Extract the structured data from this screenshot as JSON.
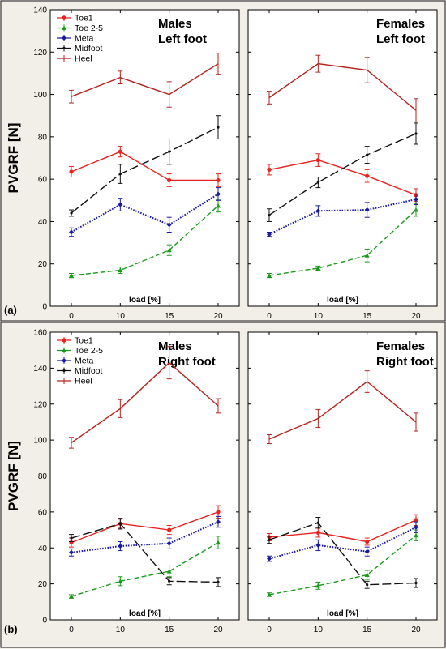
{
  "chart_data": [
    {
      "type": "line",
      "panel_label": "(a)",
      "ylabel": "PVGRF [N]",
      "ylim": [
        0,
        140
      ],
      "yticks": [
        0,
        20,
        40,
        60,
        80,
        100,
        120,
        140
      ],
      "grid": false,
      "legend_position": "top-left",
      "subplots": [
        {
          "title_line1": "Males",
          "title_line2": "Left foot",
          "xlabel": "load [%]",
          "x": [
            0,
            10,
            15,
            20
          ],
          "series": [
            {
              "name": "Toe1",
              "color": "#e8231f",
              "style": "solid",
              "marker": "circle",
              "values": [
                63.5,
                73,
                59.5,
                59.5
              ],
              "errors": [
                2.5,
                2.5,
                3,
                3
              ]
            },
            {
              "name": "Toe 2-5",
              "color": "#1a9a1a",
              "style": "dashed",
              "marker": "triangle",
              "values": [
                14.5,
                17,
                26.5,
                47.5
              ],
              "errors": [
                1,
                1.5,
                2.5,
                3
              ]
            },
            {
              "name": "Meta",
              "color": "#1a1aa0",
              "style": "dotted",
              "marker": "diamond",
              "values": [
                35,
                48,
                38.5,
                53
              ],
              "errors": [
                2,
                3,
                3.5,
                3
              ]
            },
            {
              "name": "Midfoot",
              "color": "#111111",
              "style": "longdash",
              "marker": "plus",
              "values": [
                44,
                62.5,
                73,
                84.5
              ],
              "errors": [
                1.5,
                4.5,
                6,
                5.5
              ]
            },
            {
              "name": "Heel",
              "color": "#b3231f",
              "style": "solid",
              "marker": "none",
              "values": [
                99,
                108,
                100,
                114.5
              ],
              "errors": [
                3,
                3,
                6,
                5
              ]
            }
          ]
        },
        {
          "title_line1": "Females",
          "title_line2": "Left foot",
          "xlabel": "load [%]",
          "x": [
            0,
            10,
            15,
            20
          ],
          "series": [
            {
              "name": "Toe1",
              "color": "#e8231f",
              "style": "solid",
              "marker": "circle",
              "values": [
                64.5,
                69,
                61.5,
                52.5
              ],
              "errors": [
                2.5,
                3,
                3,
                3
              ]
            },
            {
              "name": "Toe 2-5",
              "color": "#1a9a1a",
              "style": "dashed",
              "marker": "triangle",
              "values": [
                14.5,
                18,
                24,
                45.5
              ],
              "errors": [
                1,
                1,
                3,
                3
              ]
            },
            {
              "name": "Meta",
              "color": "#1a1aa0",
              "style": "dotted",
              "marker": "diamond",
              "values": [
                34,
                45,
                45.5,
                50.5
              ],
              "errors": [
                1,
                2.5,
                3.5,
                2.5
              ]
            },
            {
              "name": "Midfoot",
              "color": "#111111",
              "style": "longdash",
              "marker": "plus",
              "values": [
                43,
                58.5,
                71.5,
                81.5
              ],
              "errors": [
                3,
                2.5,
                4,
                5
              ]
            },
            {
              "name": "Heel",
              "color": "#b3231f",
              "style": "solid",
              "marker": "none",
              "values": [
                98.5,
                114.5,
                111.5,
                92.5
              ],
              "errors": [
                3,
                4,
                6,
                5.5
              ]
            }
          ]
        }
      ]
    },
    {
      "type": "line",
      "panel_label": "(b)",
      "ylabel": "PVGRF [N]",
      "ylim": [
        0,
        160
      ],
      "yticks": [
        0,
        20,
        40,
        60,
        80,
        100,
        120,
        140,
        160
      ],
      "grid": false,
      "legend_position": "top-left",
      "subplots": [
        {
          "title_line1": "Males",
          "title_line2": "Right foot",
          "xlabel": "load [%]",
          "x": [
            0,
            10,
            15,
            20
          ],
          "series": [
            {
              "name": "Toe1",
              "color": "#e8231f",
              "style": "solid",
              "marker": "circle",
              "values": [
                43,
                53.5,
                50,
                60
              ],
              "errors": [
                2.5,
                2.5,
                2.5,
                3.5
              ]
            },
            {
              "name": "Toe 2-5",
              "color": "#1a9a1a",
              "style": "dashed",
              "marker": "triangle",
              "values": [
                13,
                21.5,
                27,
                43
              ],
              "errors": [
                1,
                2.5,
                3,
                3.5
              ]
            },
            {
              "name": "Meta",
              "color": "#1a1aa0",
              "style": "dotted",
              "marker": "diamond",
              "values": [
                37.5,
                41,
                42.5,
                54.5
              ],
              "errors": [
                2,
                2.5,
                3,
                3
              ]
            },
            {
              "name": "Midfoot",
              "color": "#111111",
              "style": "longdash",
              "marker": "plus",
              "values": [
                45.5,
                53.5,
                21.5,
                21
              ],
              "errors": [
                2,
                3,
                2,
                2.5
              ]
            },
            {
              "name": "Heel",
              "color": "#b3231f",
              "style": "solid",
              "marker": "none",
              "values": [
                98.5,
                117.5,
                143,
                119
              ],
              "errors": [
                3,
                5,
                9,
                4
              ]
            }
          ]
        },
        {
          "title_line1": "Females",
          "title_line2": "Right foot",
          "xlabel": "load [%]",
          "x": [
            0,
            10,
            15,
            20
          ],
          "series": [
            {
              "name": "Toe1",
              "color": "#e8231f",
              "style": "solid",
              "marker": "circle",
              "values": [
                46,
                48.5,
                43.5,
                55.5
              ],
              "errors": [
                2,
                2.5,
                2,
                3
              ]
            },
            {
              "name": "Toe 2-5",
              "color": "#1a9a1a",
              "style": "dashed",
              "marker": "triangle",
              "values": [
                14,
                19,
                25,
                47
              ],
              "errors": [
                1,
                2,
                2.5,
                3
              ]
            },
            {
              "name": "Meta",
              "color": "#1a1aa0",
              "style": "dotted",
              "marker": "diamond",
              "values": [
                34,
                41.5,
                38,
                51.5
              ],
              "errors": [
                1.5,
                3,
                2.5,
                3
              ]
            },
            {
              "name": "Midfoot",
              "color": "#111111",
              "style": "longdash",
              "marker": "plus",
              "values": [
                44.5,
                54,
                19.5,
                20.5
              ],
              "errors": [
                2,
                3,
                2,
                2.5
              ]
            },
            {
              "name": "Heel",
              "color": "#b3231f",
              "style": "solid",
              "marker": "none",
              "values": [
                100.5,
                112,
                132.5,
                110
              ],
              "errors": [
                2.5,
                5,
                6,
                5
              ]
            }
          ]
        }
      ]
    }
  ]
}
